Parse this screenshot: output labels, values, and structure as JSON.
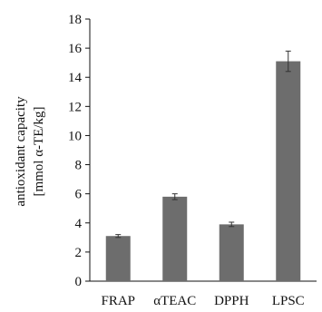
{
  "chart_data": {
    "type": "bar",
    "categories": [
      "FRAP",
      "αTEAC",
      "DPPH",
      "LPSC"
    ],
    "values": [
      3.1,
      5.8,
      3.9,
      15.1
    ],
    "errors": [
      0.1,
      0.2,
      0.15,
      0.7
    ],
    "ylabel_line1": "antioxidant capacity",
    "ylabel_line2": "[mmol α-TE/kg]",
    "ylim": [
      0,
      18
    ],
    "yticks": [
      0,
      2,
      4,
      6,
      8,
      10,
      12,
      14,
      16,
      18
    ],
    "grid": false,
    "bar_color": "#6d6d6d",
    "axis_color": "#111111"
  }
}
